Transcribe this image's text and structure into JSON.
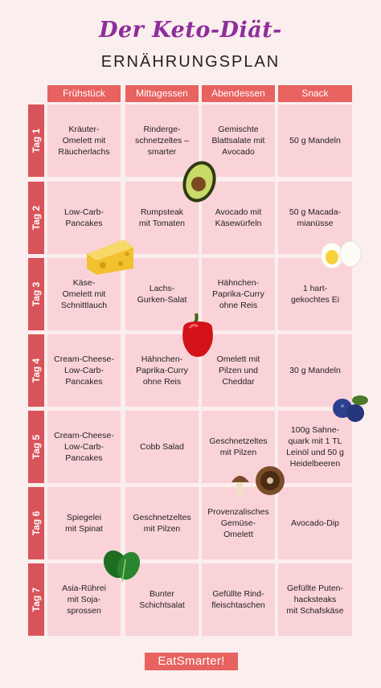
{
  "header": {
    "title": "Der Keto-Diät-",
    "subtitle": "ERNÄHRUNGSPLAN"
  },
  "columns": [
    "Frühstück",
    "Mittagessen",
    "Abendessen",
    "Snack"
  ],
  "days": [
    {
      "label": "Tag 1",
      "meals": [
        "Kräuter-\nOmelett mit\nRäucherlachs",
        "Rinderge-\nschnetzeltes –\nsmarter",
        "Gemischte\nBlattsalate mit\nAvocado",
        "50 g Mandeln"
      ]
    },
    {
      "label": "Tag 2",
      "meals": [
        "Low-Carb-\nPancakes",
        "Rumpsteak\nmit Tomaten",
        "Avocado mit\nKäsewürfeln",
        "50 g Macada-\nmianüsse"
      ]
    },
    {
      "label": "Tag 3",
      "meals": [
        "Käse-\nOmelett mit\nSchnittlauch",
        "Lachs-\nGurken-Salat",
        "Hähnchen-\nPaprika-Curry\nohne Reis",
        "1 hart-\ngekochtes Ei"
      ]
    },
    {
      "label": "Tag 4",
      "meals": [
        "Cream-Cheese-\nLow-Carb-\nPancakes",
        "Hähnchen-\nPaprika-Curry\nohne Reis",
        "Omelett mit\nPilzen und\nCheddar",
        "30 g Mandeln"
      ]
    },
    {
      "label": "Tag 5",
      "meals": [
        "Cream-Cheese-\nLow-Carb-\nPancakes",
        "Cobb Salad",
        "Geschnetzeltes\nmit Pilzen",
        "100g Sahne-\nquark mit  1 TL\nLeinöl und 50 g\nHeidelbeeren"
      ]
    },
    {
      "label": "Tag 6",
      "meals": [
        "Spiegelei\nmit Spinat",
        "Geschnetzeltes\nmit Pilzen",
        "Provenzalisches\nGemüse-\nOmelett",
        "Avocado-Dip"
      ]
    },
    {
      "label": "Tag 7",
      "meals": [
        "Asia-Rührei\nmit Soja-\nsprossen",
        "Bunter\nSchichtsalat",
        "Gefüllte Rind-\nfleischtaschen",
        "Gefüllte Puten-\nhacksteaks\nmit Schafskäse"
      ]
    }
  ],
  "footer": {
    "brand": "EatSmarter!"
  },
  "colors": {
    "accent": "#e8625f",
    "day_bar": "#d9545a",
    "cell": "#fad3d8",
    "title": "#8e2d9b"
  },
  "decorations": [
    "avocado-icon",
    "cheese-icon",
    "egg-icon",
    "bell-pepper-icon",
    "blueberry-icon",
    "mushroom-icon",
    "spinach-icon"
  ]
}
